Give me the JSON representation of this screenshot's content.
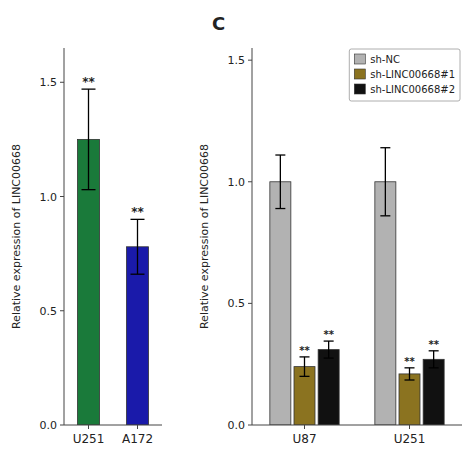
{
  "chart_data": [
    {
      "type": "bar",
      "categories": [
        "U251",
        "A172"
      ],
      "values": [
        1.25,
        0.78
      ],
      "errors": [
        0.22,
        0.12
      ],
      "colors": [
        "#1a7a3a",
        "#1a1aaa"
      ],
      "annotations": [
        "**",
        "**"
      ],
      "ylabel": "Relative expression of LINC00668",
      "ylim": [
        0,
        1.65
      ],
      "yticks": [
        {
          "value": 0.0,
          "label": "0.0"
        },
        0.5,
        {
          "value": 1.0,
          "label": "1.0"
        },
        1.5
      ],
      "grid": false
    },
    {
      "type": "bar",
      "title": "C",
      "ylabel": "Relative expression of LINC00668",
      "categories": [
        "U87",
        "U251"
      ],
      "series": [
        {
          "name": "sh-NC",
          "color": "#b2b2b2",
          "values": [
            1.0,
            1.0
          ],
          "errors": [
            0.11,
            0.14
          ]
        },
        {
          "name": "sh-LINC00668#1",
          "color": "#8b7320",
          "values": [
            0.24,
            0.21
          ],
          "errors": [
            0.04,
            0.025
          ],
          "annotations": [
            "**",
            "**"
          ]
        },
        {
          "name": "sh-LINC00668#2",
          "color": "#111111",
          "values": [
            0.31,
            0.27
          ],
          "errors": [
            0.035,
            0.035
          ],
          "annotations": [
            "**",
            "**"
          ]
        }
      ],
      "ylim": [
        0,
        1.55
      ],
      "yticks": [
        {
          "value": 0.0,
          "label": "0.0"
        },
        0.5,
        {
          "value": 1.0,
          "label": "1.0"
        },
        1.5
      ],
      "legend": "upper right",
      "grid": false
    }
  ]
}
